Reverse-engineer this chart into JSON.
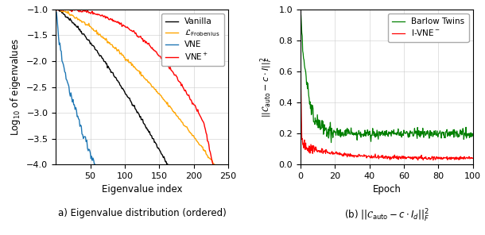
{
  "left_plot": {
    "xlabel": "Eigenvalue index",
    "ylabel": "Log$_{10}$ of eigenvalues",
    "xlim": [
      0,
      250
    ],
    "ylim": [
      -4.0,
      -1.0
    ],
    "yticks": [
      -4.0,
      -3.5,
      -3.0,
      -2.5,
      -2.0,
      -1.5,
      -1.0
    ],
    "xticks": [
      50,
      100,
      150,
      200,
      250
    ],
    "vanilla_color": "black",
    "frob_color": "orange",
    "vne_color": "#1f77b4",
    "vneplus_color": "red"
  },
  "right_plot": {
    "xlabel": "Epoch",
    "xlim": [
      0,
      100
    ],
    "ylim": [
      0.0,
      1.0
    ],
    "yticks": [
      0.0,
      0.2,
      0.4,
      0.6,
      0.8,
      1.0
    ],
    "xticks": [
      0,
      20,
      40,
      60,
      80,
      100
    ],
    "barlow_color": "green",
    "ivne_color": "red"
  },
  "caption_left": "a) Eigenvalue distribution (ordered)",
  "caption_right": "(b) $||\\mathcal{C}_{\\mathrm{auto}} - c \\cdot I_d||^2_F$"
}
